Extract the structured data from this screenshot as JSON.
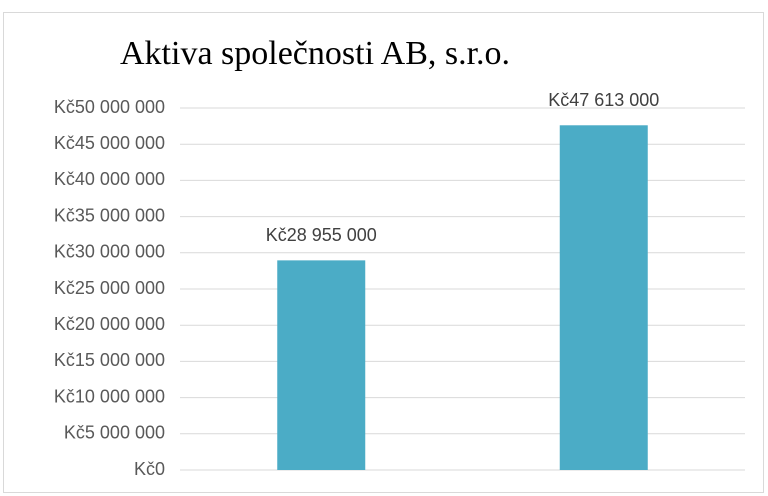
{
  "chart_data": {
    "type": "bar",
    "title": "Aktiva společnosti AB, s.r.o.",
    "categories": [
      null,
      null
    ],
    "values": [
      28955000,
      47613000
    ],
    "value_labels": [
      "Kč28 955 000",
      "Kč47 613 000"
    ],
    "color": "#4bacc6",
    "ylim": [
      0,
      50000000
    ],
    "yticks": [
      {
        "value": 0,
        "label": "Kč0"
      },
      {
        "value": 5000000,
        "label": "Kč5 000 000"
      },
      {
        "value": 10000000,
        "label": "Kč10 000 000"
      },
      {
        "value": 15000000,
        "label": "Kč15 000 000"
      },
      {
        "value": 20000000,
        "label": "Kč20 000 000"
      },
      {
        "value": 25000000,
        "label": "Kč25 000 000"
      },
      {
        "value": 30000000,
        "label": "Kč30 000 000"
      },
      {
        "value": 35000000,
        "label": "Kč35 000 000"
      },
      {
        "value": 40000000,
        "label": "Kč40 000 000"
      },
      {
        "value": 45000000,
        "label": "Kč45 000 000"
      },
      {
        "value": 50000000,
        "label": "Kč50 000 000"
      }
    ],
    "grid": true
  }
}
